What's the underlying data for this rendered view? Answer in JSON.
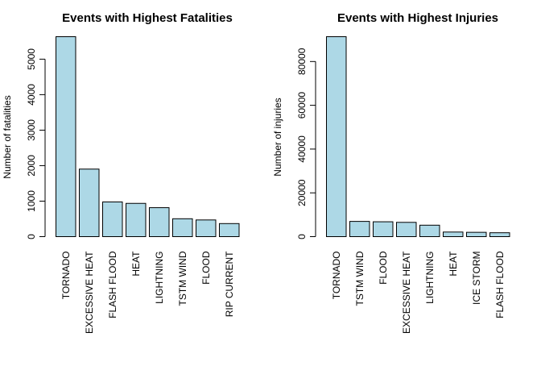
{
  "chart_data": [
    {
      "type": "bar",
      "title": "Events with Highest Fatalities",
      "xlabel": "",
      "ylabel": "Number of fatalities",
      "categories": [
        "TORNADO",
        "EXCESSIVE HEAT",
        "FLASH FLOOD",
        "HEAT",
        "LIGHTNING",
        "TSTM WIND",
        "FLOOD",
        "RIP CURRENT"
      ],
      "values": [
        5633,
        1903,
        978,
        937,
        816,
        504,
        470,
        368
      ],
      "yticks": [
        0,
        1000,
        2000,
        3000,
        4000,
        5000
      ],
      "ylim": [
        0,
        5633
      ],
      "bar_color": "#add8e6",
      "grid": false
    },
    {
      "type": "bar",
      "title": "Events with Highest Injuries",
      "xlabel": "",
      "ylabel": "Number of injuries",
      "categories": [
        "TORNADO",
        "TSTM WIND",
        "FLOOD",
        "EXCESSIVE HEAT",
        "LIGHTNING",
        "HEAT",
        "ICE STORM",
        "FLASH FLOOD"
      ],
      "values": [
        91346,
        6957,
        6789,
        6525,
        5230,
        2100,
        1975,
        1777
      ],
      "yticks": [
        0,
        20000,
        40000,
        60000,
        80000
      ],
      "ylim": [
        0,
        91346
      ],
      "bar_color": "#add8e6",
      "grid": false
    }
  ]
}
